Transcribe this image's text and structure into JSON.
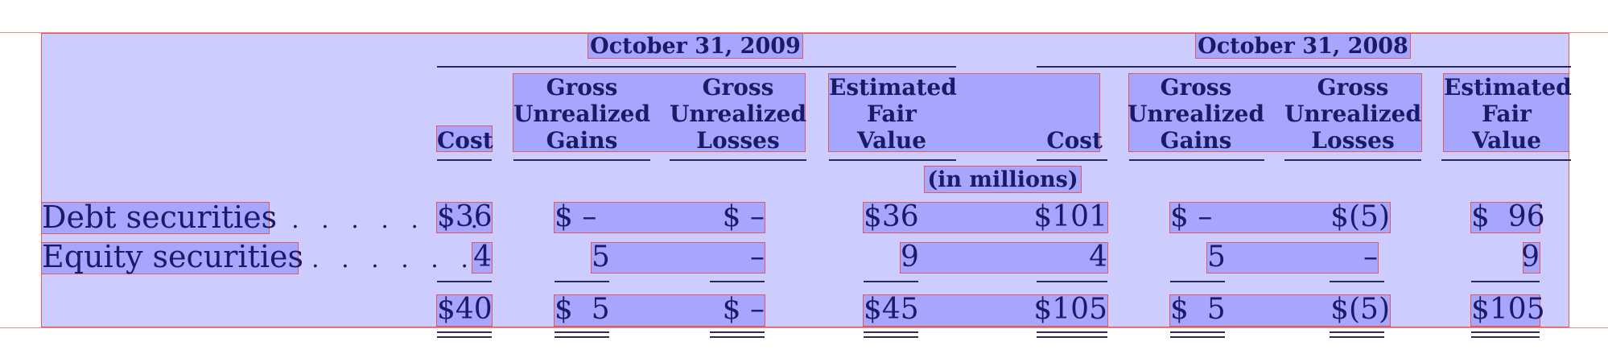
{
  "table": {
    "period_2009": "October 31, 2009",
    "period_2008": "October 31, 2008",
    "col_cost": "Cost",
    "col_gains": [
      "Gross",
      "Unrealized",
      "Gains"
    ],
    "col_losses": [
      "Gross",
      "Unrealized",
      "Losses"
    ],
    "col_fair": [
      "Estimated",
      "Fair",
      "Value"
    ],
    "units": "(in millions)",
    "rows": [
      {
        "label": "Debt securities",
        "leader": ". . . . . . .",
        "v": [
          "$36",
          "$ –",
          "$ –",
          "$36",
          "$101",
          "$ –",
          "$(5)",
          "$  96"
        ]
      },
      {
        "label": "Equity securities",
        "leader": ". . . . . .",
        "v": [
          "4",
          "5",
          "–",
          "9",
          "4",
          "5",
          "–",
          "9"
        ]
      }
    ],
    "total": [
      "$40",
      "$  5",
      "$ –",
      "$45",
      "$105",
      "$  5",
      "$(5)",
      "$105"
    ]
  }
}
